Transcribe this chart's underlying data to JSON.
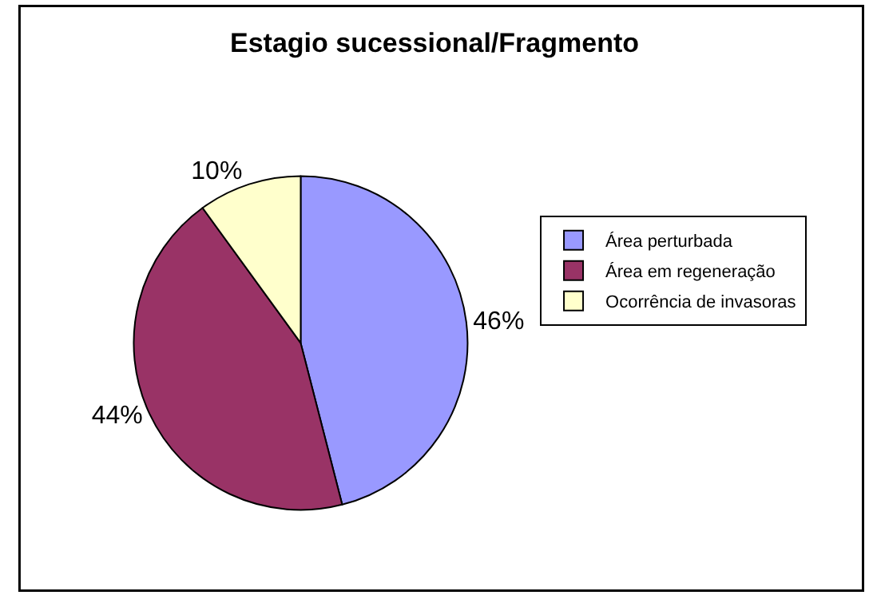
{
  "chart_data": {
    "type": "pie",
    "title": "Estagio sucessional/Fragmento",
    "categories": [
      "Área perturbada",
      "Área em regeneração",
      "Ocorrência de invasoras"
    ],
    "values": [
      46,
      44,
      10
    ],
    "value_labels": [
      "46%",
      "44%",
      "10%"
    ],
    "colors": [
      "#9999ff",
      "#993366",
      "#ffffcc"
    ],
    "legend": "right"
  }
}
